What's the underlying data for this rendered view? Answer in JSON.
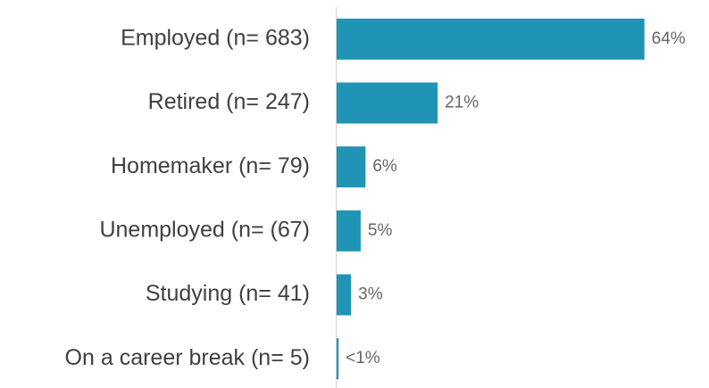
{
  "chart_data": {
    "type": "bar",
    "orientation": "horizontal",
    "categories": [
      "Employed (n= 683)",
      "Retired (n= 247)",
      "Homemaker (n= 79)",
      "Unemployed (n= (67)",
      "Studying (n= 41)",
      "On a career break (n= 5)"
    ],
    "values": [
      64,
      21,
      6,
      5,
      3,
      0.4
    ],
    "value_labels": [
      "64%",
      "21%",
      "6%",
      "5%",
      "3%",
      "<1%"
    ],
    "color": "#2094b4",
    "xlim": [
      0,
      70
    ]
  }
}
